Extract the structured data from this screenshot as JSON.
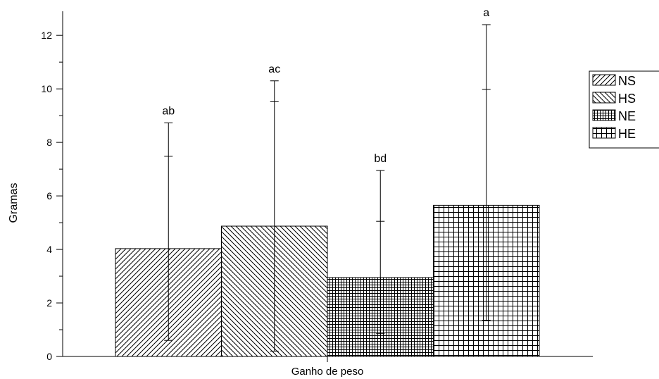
{
  "chart_data": {
    "type": "bar",
    "title": "",
    "xlabel": "Ganho de peso",
    "ylabel": "Gramas",
    "ylim": [
      0,
      12.9
    ],
    "yticks": [
      0,
      2,
      4,
      6,
      8,
      10,
      12
    ],
    "grid": false,
    "legend_position": "right",
    "categories": [
      "Ganho de peso"
    ],
    "series": [
      {
        "name": "NS",
        "value": 4.03,
        "err_low": 0.6,
        "err_high": 8.73,
        "inner_high": 7.48,
        "letter": "ab",
        "pattern": "diag-right"
      },
      {
        "name": "HS",
        "value": 4.87,
        "err_low": 0.2,
        "err_high": 10.3,
        "inner_high": 9.52,
        "letter": "ac",
        "pattern": "diag-left"
      },
      {
        "name": "NE",
        "value": 2.95,
        "err_low": 0.85,
        "err_high": 6.95,
        "inner_high": 5.05,
        "letter": "bd",
        "pattern": "fine-grid"
      },
      {
        "name": "HE",
        "value": 5.65,
        "err_low": 1.35,
        "err_high": 12.4,
        "inner_high": 9.98,
        "letter": "a",
        "pattern": "coarse-grid"
      }
    ]
  }
}
